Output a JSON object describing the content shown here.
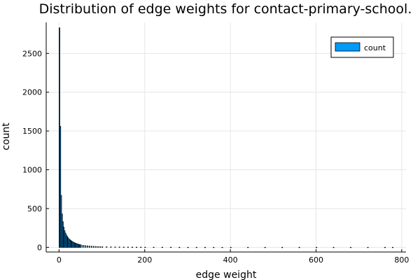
{
  "chart_data": {
    "type": "bar",
    "title": "Distribution of edge weights for contact-primary-school.",
    "xlabel": "edge weight",
    "ylabel": "count",
    "xlim": [
      -30,
      810
    ],
    "ylim": [
      -60,
      2900
    ],
    "x_ticks": [
      0,
      200,
      400,
      600,
      800
    ],
    "y_ticks": [
      0,
      500,
      1000,
      1500,
      2000,
      2500
    ],
    "grid": true,
    "legend_position": "top-right",
    "series": [
      {
        "name": "count",
        "color": "#009AF9",
        "edge_color": "#000000",
        "bin_width": 2,
        "x": [
          0,
          2,
          4,
          6,
          8,
          10,
          12,
          14,
          16,
          18,
          20,
          22,
          24,
          26,
          28,
          30,
          32,
          34,
          36,
          38,
          40,
          42,
          44,
          46,
          48,
          50,
          55,
          60,
          65,
          70,
          75,
          80,
          85,
          90,
          95,
          100,
          110,
          120,
          130,
          140,
          150,
          160,
          170,
          180,
          190,
          200,
          220,
          240,
          260,
          280,
          300,
          320,
          340,
          360,
          380,
          400,
          440,
          480,
          520,
          560,
          600,
          640,
          680,
          720,
          760,
          778
        ],
        "values": [
          2830,
          1560,
          670,
          430,
          330,
          260,
          215,
          185,
          160,
          140,
          125,
          110,
          100,
          90,
          82,
          75,
          68,
          62,
          56,
          52,
          48,
          44,
          40,
          37,
          34,
          31,
          27,
          23,
          20,
          17,
          15,
          13,
          11,
          10,
          9,
          8,
          7,
          6,
          5,
          5,
          4,
          4,
          3,
          3,
          3,
          2,
          2,
          2,
          2,
          1,
          1,
          1,
          1,
          1,
          1,
          1,
          1,
          1,
          1,
          1,
          1,
          1,
          1,
          1,
          1,
          1
        ]
      }
    ]
  }
}
